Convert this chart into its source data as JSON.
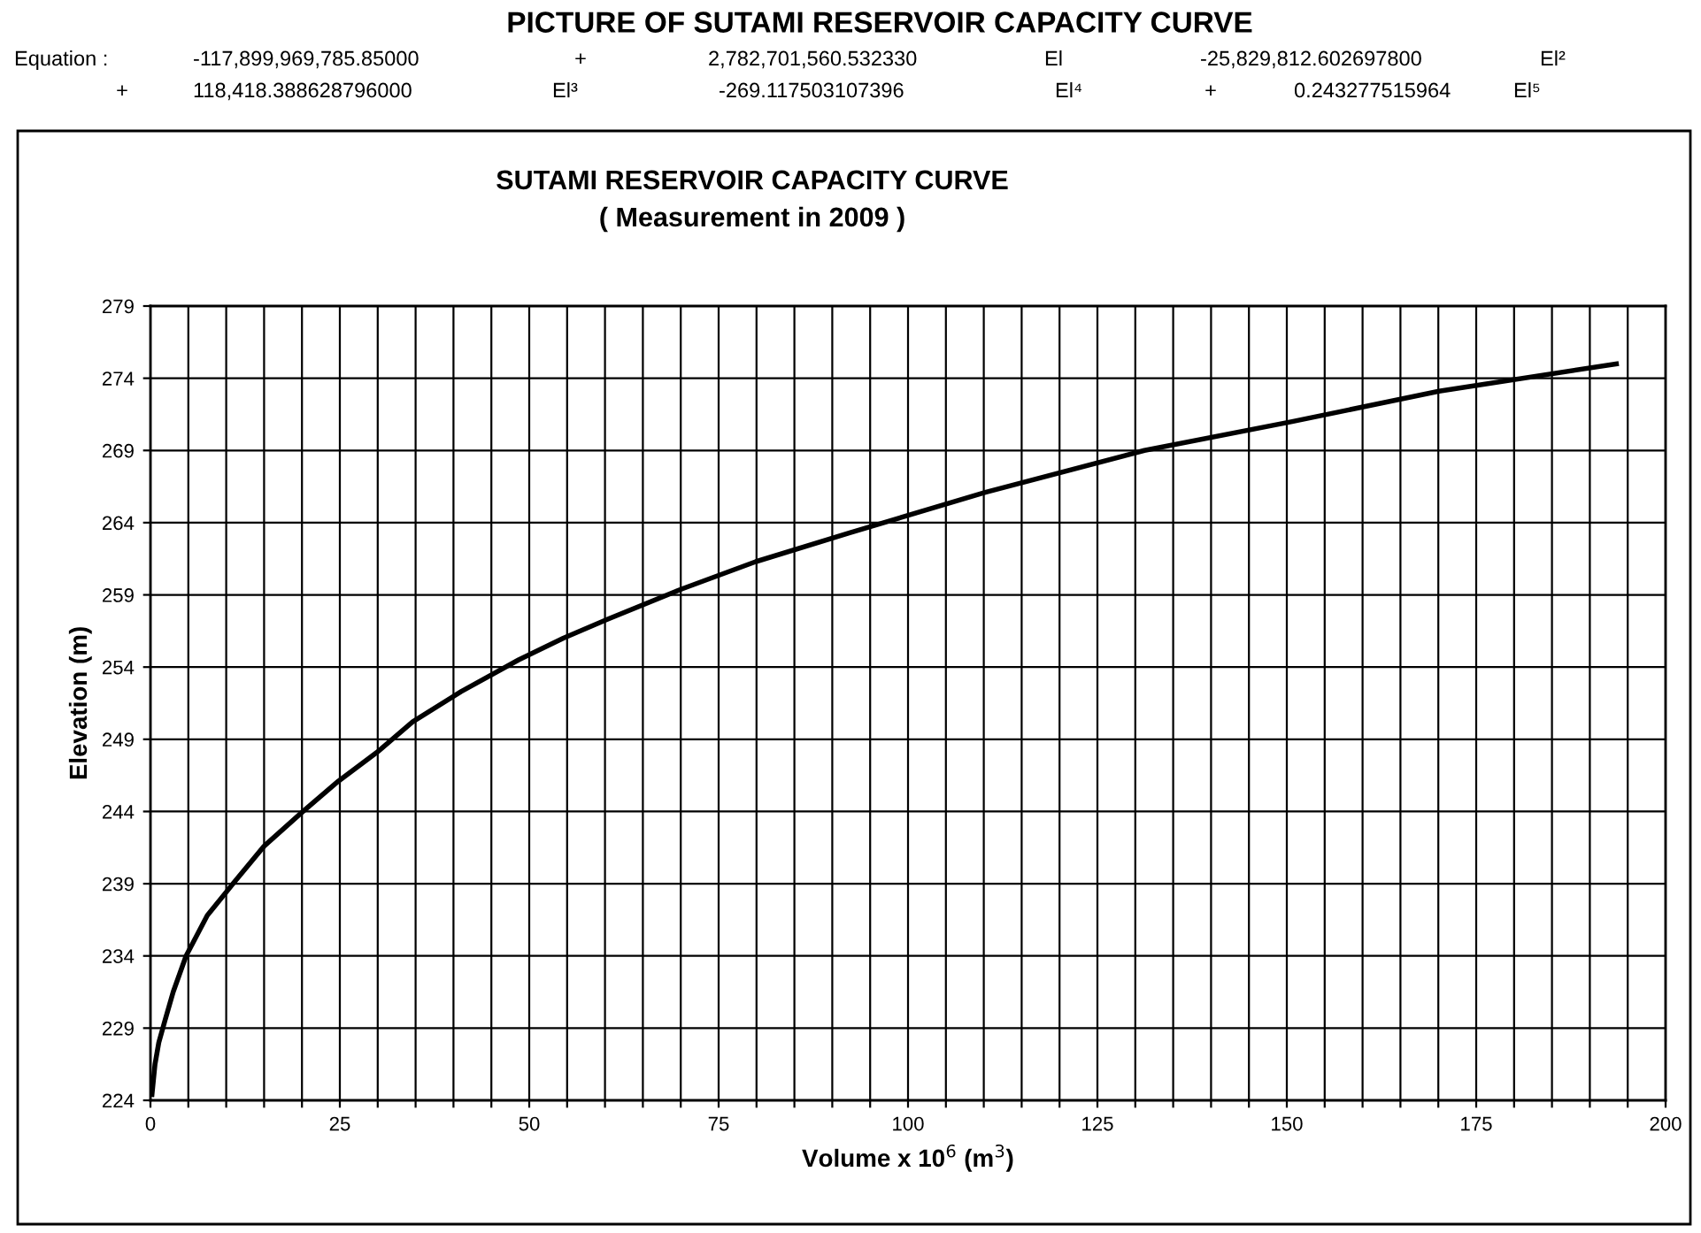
{
  "chart_data": {
    "type": "line",
    "title": "SUTAMI RESERVOIR CAPACITY CURVE",
    "subtitle": "( Measurement in 2009 )",
    "xlabel": "Volume x 10$^{6}$ (m$^{3}$)",
    "ylabel": "Elevation (m)",
    "annotations": [
      "PICTURE OF SUTAMI RESERVOIR CAPACITY CURVE",
      "Equation :",
      "-117,899,969,785.85000",
      "+",
      "2,782,701,560.532330",
      "El",
      "-25,829,812.602697800",
      "El²",
      "+",
      "118,418.388628796000",
      "El³",
      "-269.117503107396",
      "El⁴",
      "+",
      "0.243277515964",
      "El⁵"
    ],
    "series": [
      {
        "color": "#000000",
        "x": [
          0.2,
          0.6,
          1.1,
          1.9,
          3.0,
          4.7,
          7.5,
          10.9,
          15.0,
          19.9,
          24.8,
          29.9,
          34.6,
          41.0,
          48.6,
          54.5,
          60.3,
          70.1,
          79.9,
          92.3,
          110.2,
          131.2,
          150.7,
          170.1,
          193.5
        ],
        "values": [
          224.4,
          226.5,
          228.0,
          229.5,
          231.5,
          234.0,
          236.8,
          239.0,
          241.6,
          243.9,
          246.1,
          248.1,
          250.2,
          252.3,
          254.5,
          256.0,
          257.3,
          259.4,
          261.3,
          263.3,
          266.1,
          269.0,
          271.0,
          273.1,
          275.0
        ]
      }
    ],
    "xlim": [
      0,
      200
    ],
    "ylim": [
      224,
      279
    ],
    "xticks": [
      0,
      {
        "value": 5,
        "label": null
      },
      {
        "value": 10,
        "label": null
      },
      {
        "value": 15,
        "label": null
      },
      {
        "value": 20,
        "label": null
      },
      25,
      {
        "value": 30,
        "label": null
      },
      {
        "value": 35,
        "label": null
      },
      {
        "value": 40,
        "label": null
      },
      {
        "value": 45,
        "label": null
      },
      50,
      {
        "value": 55,
        "label": null
      },
      {
        "value": 60,
        "label": null
      },
      {
        "value": 65,
        "label": null
      },
      {
        "value": 70,
        "label": null
      },
      75,
      {
        "value": 80,
        "label": null
      },
      {
        "value": 85,
        "label": null
      },
      {
        "value": 90,
        "label": null
      },
      {
        "value": 95,
        "label": null
      },
      100,
      {
        "value": 105,
        "label": null
      },
      {
        "value": 110,
        "label": null
      },
      {
        "value": 115,
        "label": null
      },
      {
        "value": 120,
        "label": null
      },
      125,
      {
        "value": 130,
        "label": null
      },
      {
        "value": 135,
        "label": null
      },
      {
        "value": 140,
        "label": null
      },
      {
        "value": 145,
        "label": null
      },
      150,
      {
        "value": 155,
        "label": null
      },
      {
        "value": 160,
        "label": null
      },
      {
        "value": 165,
        "label": null
      },
      {
        "value": 170,
        "label": null
      },
      175,
      {
        "value": 180,
        "label": null
      },
      {
        "value": 185,
        "label": null
      },
      {
        "value": 190,
        "label": null
      },
      {
        "value": 195,
        "label": null
      },
      200
    ],
    "yticks": [
      224,
      229,
      234,
      239,
      244,
      249,
      254,
      259,
      264,
      269,
      274,
      279
    ],
    "grid": true,
    "marker": "none",
    "line_style": "solid"
  }
}
